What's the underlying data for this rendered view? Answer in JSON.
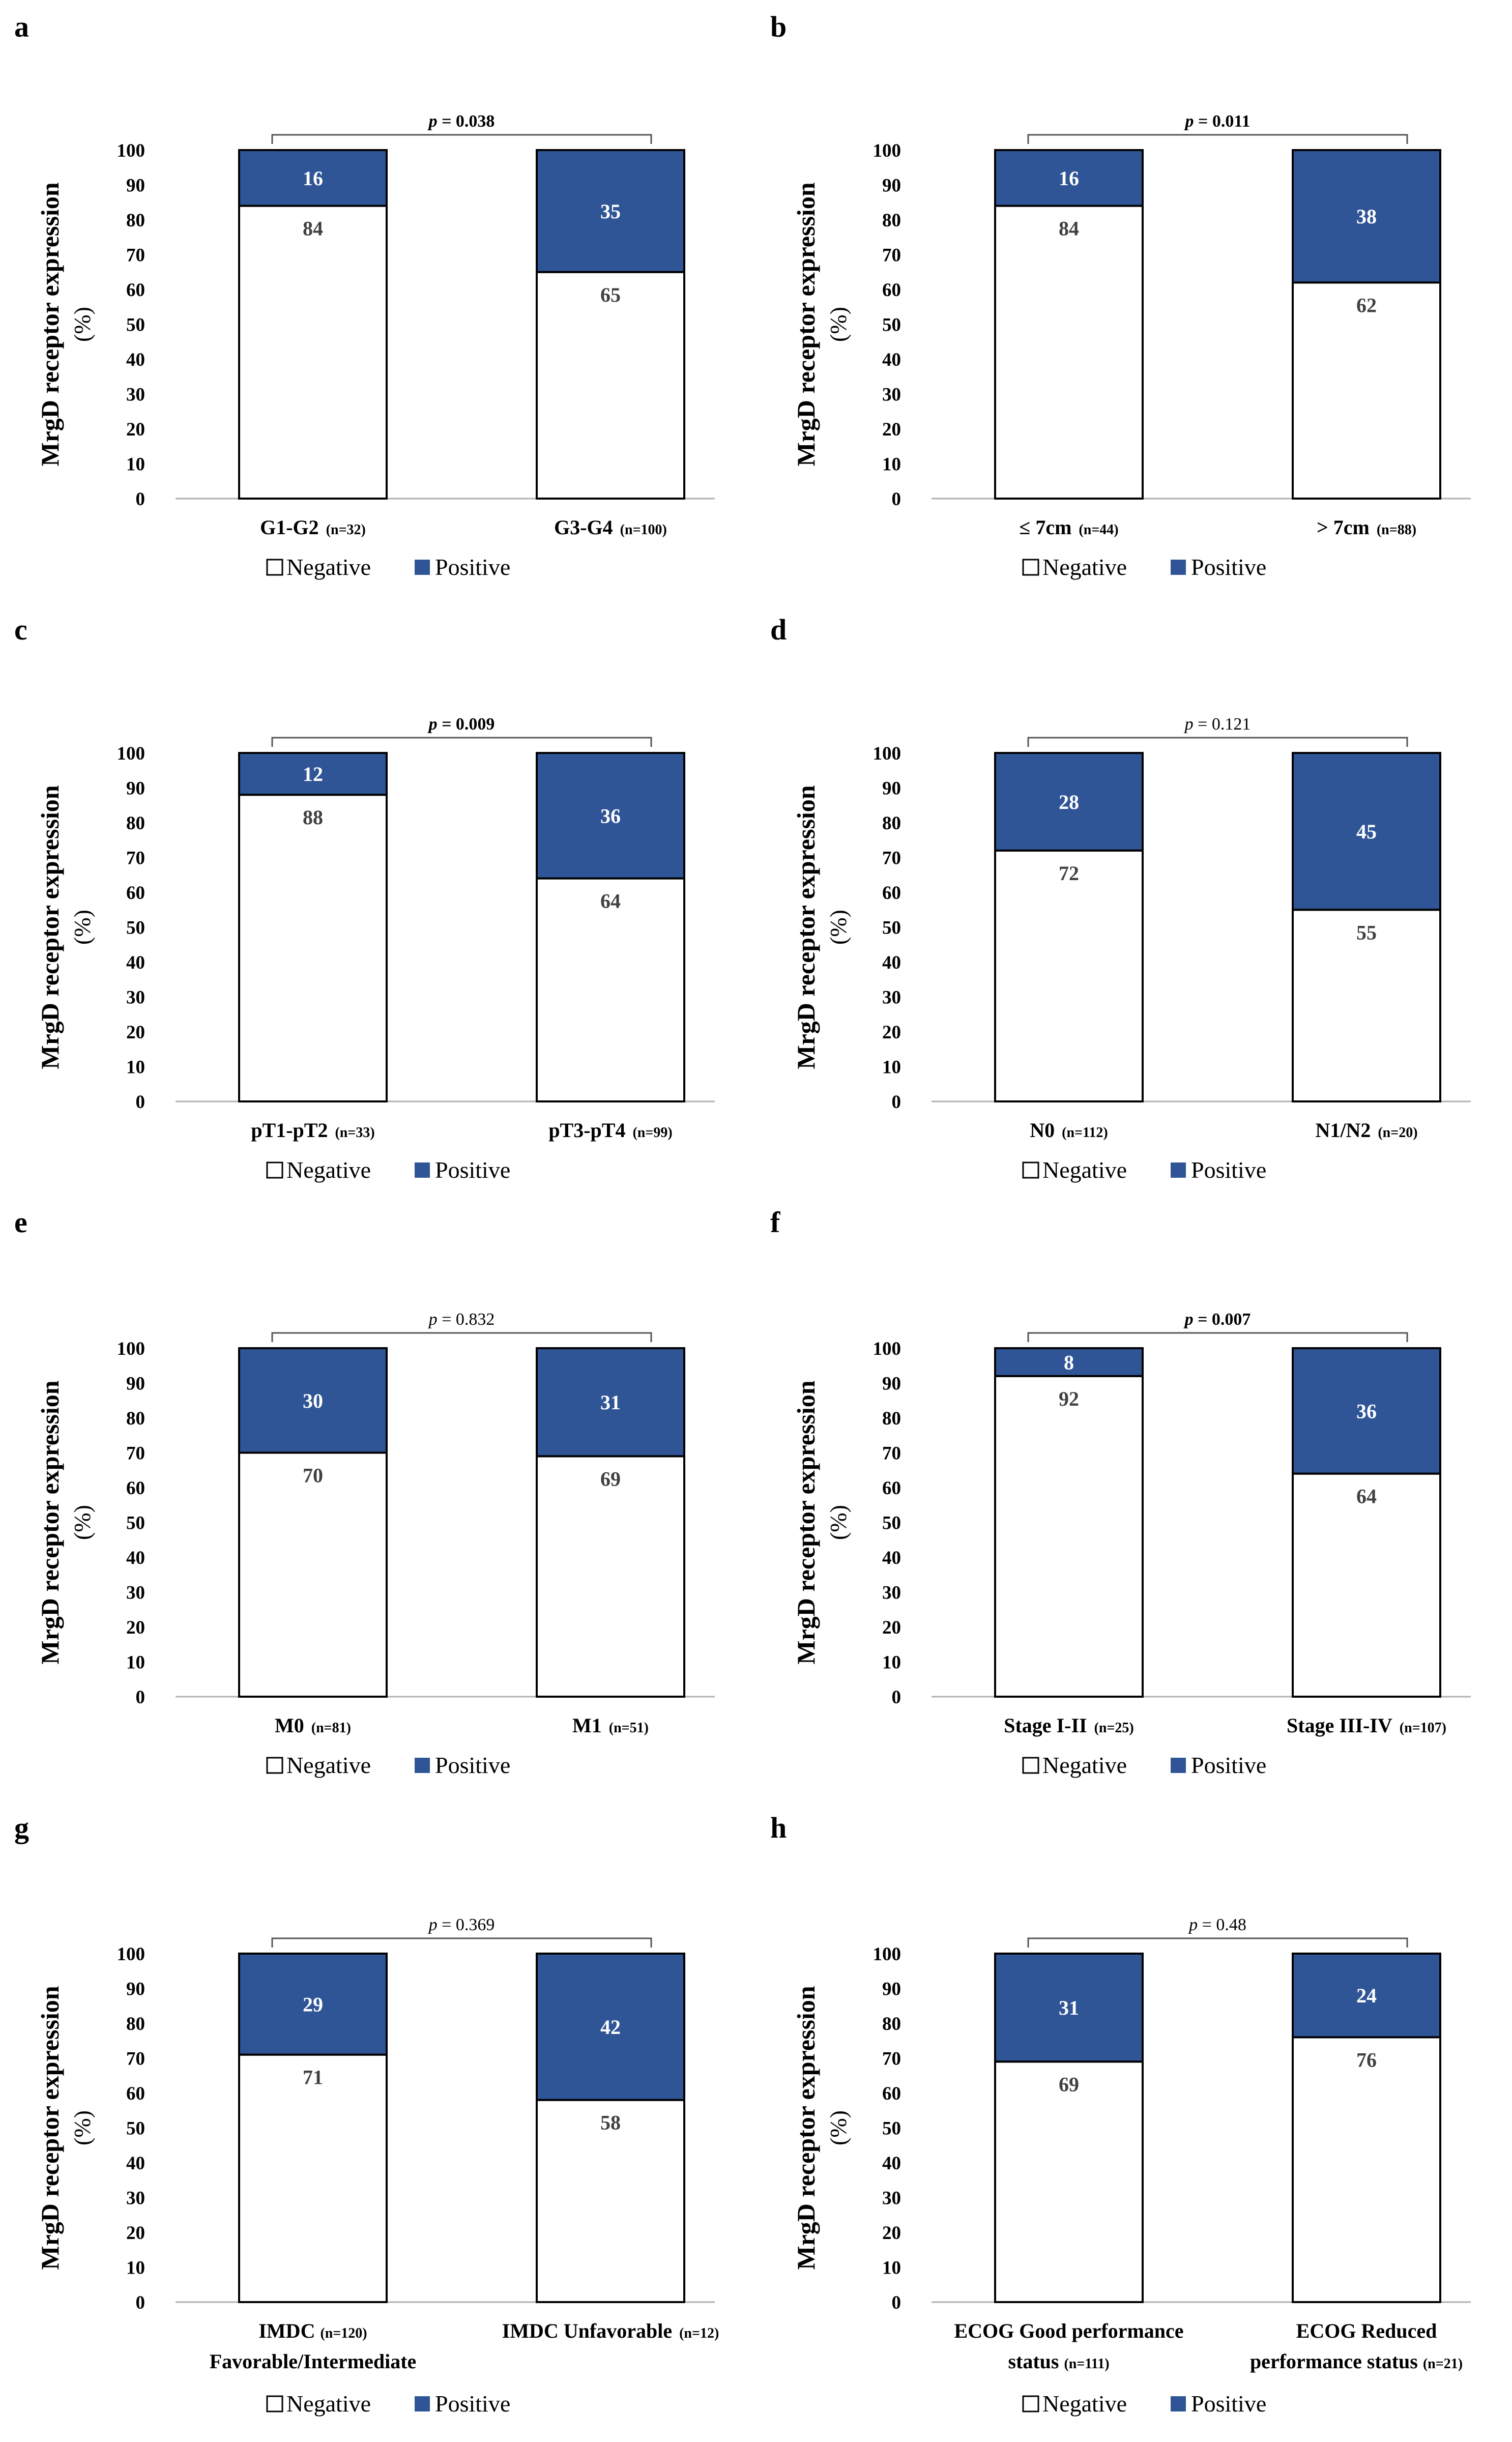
{
  "figure": {
    "legend_labels": [
      "Negative",
      "Positive"
    ],
    "colors": {
      "negative": "#ffffff",
      "positive": "#2f5597",
      "stroke": "#000000",
      "axis": "#b0b0b0",
      "bracket": "#555555"
    }
  },
  "chart_data": [
    {
      "panel": "a",
      "type": "bar",
      "stacked": true,
      "ylabel": "MrgD receptor expression (%)",
      "ylim": [
        0,
        100
      ],
      "yticks": [
        0,
        10,
        20,
        30,
        40,
        50,
        60,
        70,
        80,
        90,
        100
      ],
      "categories": [
        {
          "label": "G1-G2",
          "n": "(n=32)"
        },
        {
          "label": "G3-G4",
          "n": "(n=100)"
        }
      ],
      "series": [
        {
          "name": "Negative",
          "values": [
            84,
            65
          ]
        },
        {
          "name": "Positive",
          "values": [
            16,
            35
          ]
        }
      ],
      "p_value": "0.038",
      "p_bold": true,
      "legend": "bottom-center"
    },
    {
      "panel": "b",
      "type": "bar",
      "stacked": true,
      "ylabel": "MrgD receptor expression (%)",
      "ylim": [
        0,
        100
      ],
      "yticks": [
        0,
        10,
        20,
        30,
        40,
        50,
        60,
        70,
        80,
        90,
        100
      ],
      "categories": [
        {
          "label": "≤ 7cm",
          "n": "(n=44)"
        },
        {
          "label": "> 7cm",
          "n": "(n=88)"
        }
      ],
      "series": [
        {
          "name": "Negative",
          "values": [
            84,
            62
          ]
        },
        {
          "name": "Positive",
          "values": [
            16,
            38
          ]
        }
      ],
      "p_value": "0.011",
      "p_bold": true,
      "legend": "bottom-center"
    },
    {
      "panel": "c",
      "type": "bar",
      "stacked": true,
      "ylabel": "MrgD receptor expression (%)",
      "ylim": [
        0,
        100
      ],
      "yticks": [
        0,
        10,
        20,
        30,
        40,
        50,
        60,
        70,
        80,
        90,
        100
      ],
      "categories": [
        {
          "label": "pT1-pT2",
          "n": "(n=33)"
        },
        {
          "label": "pT3-pT4",
          "n": "(n=99)"
        }
      ],
      "series": [
        {
          "name": "Negative",
          "values": [
            88,
            64
          ]
        },
        {
          "name": "Positive",
          "values": [
            12,
            36
          ]
        }
      ],
      "p_value": "0.009",
      "p_bold": true,
      "legend": "bottom-center"
    },
    {
      "panel": "d",
      "type": "bar",
      "stacked": true,
      "ylabel": "MrgD receptor expression (%)",
      "ylim": [
        0,
        100
      ],
      "yticks": [
        0,
        10,
        20,
        30,
        40,
        50,
        60,
        70,
        80,
        90,
        100
      ],
      "categories": [
        {
          "label": "N0",
          "n": "(n=112)"
        },
        {
          "label": "N1/N2",
          "n": "(n=20)"
        }
      ],
      "series": [
        {
          "name": "Negative",
          "values": [
            72,
            55
          ]
        },
        {
          "name": "Positive",
          "values": [
            28,
            45
          ]
        }
      ],
      "p_value": "0.121",
      "p_bold": false,
      "legend": "bottom-center"
    },
    {
      "panel": "e",
      "type": "bar",
      "stacked": true,
      "ylabel": "MrgD receptor expression (%)",
      "ylim": [
        0,
        100
      ],
      "yticks": [
        0,
        10,
        20,
        30,
        40,
        50,
        60,
        70,
        80,
        90,
        100
      ],
      "categories": [
        {
          "label": "M0",
          "n": "(n=81)"
        },
        {
          "label": "M1",
          "n": "(n=51)"
        }
      ],
      "series": [
        {
          "name": "Negative",
          "values": [
            70,
            69
          ]
        },
        {
          "name": "Positive",
          "values": [
            30,
            31
          ]
        }
      ],
      "p_value": "0.832",
      "p_bold": false,
      "legend": "bottom-center"
    },
    {
      "panel": "f",
      "type": "bar",
      "stacked": true,
      "ylabel": "MrgD receptor expression (%)",
      "ylim": [
        0,
        100
      ],
      "yticks": [
        0,
        10,
        20,
        30,
        40,
        50,
        60,
        70,
        80,
        90,
        100
      ],
      "categories": [
        {
          "label": "Stage I-II",
          "n": "(n=25)"
        },
        {
          "label": "Stage III-IV",
          "n": "(n=107)"
        }
      ],
      "series": [
        {
          "name": "Negative",
          "values": [
            92,
            64
          ]
        },
        {
          "name": "Positive",
          "values": [
            8,
            36
          ]
        }
      ],
      "p_value": "0.007",
      "p_bold": true,
      "legend": "bottom-center"
    },
    {
      "panel": "g",
      "type": "bar",
      "stacked": true,
      "ylabel": "MrgD receptor expression (%)",
      "ylim": [
        0,
        100
      ],
      "yticks": [
        0,
        10,
        20,
        30,
        40,
        50,
        60,
        70,
        80,
        90,
        100
      ],
      "categories": [
        {
          "label": "IMDC",
          "label2": "Favorable/Intermediate",
          "n": "(n=120)"
        },
        {
          "label": "IMDC Unfavorable",
          "n": "(n=12)"
        }
      ],
      "series": [
        {
          "name": "Negative",
          "values": [
            71,
            58
          ]
        },
        {
          "name": "Positive",
          "values": [
            29,
            42
          ]
        }
      ],
      "p_value": "0.369",
      "p_bold": false,
      "legend": "bottom-center"
    },
    {
      "panel": "h",
      "type": "bar",
      "stacked": true,
      "ylabel": "MrgD receptor expression (%)",
      "ylim": [
        0,
        100
      ],
      "yticks": [
        0,
        10,
        20,
        30,
        40,
        50,
        60,
        70,
        80,
        90,
        100
      ],
      "categories": [
        {
          "label": "ECOG Good performance",
          "label2": "status",
          "n": "(n=111)"
        },
        {
          "label": "ECOG Reduced",
          "label2": "performance status",
          "n": "(n=21)"
        }
      ],
      "series": [
        {
          "name": "Negative",
          "values": [
            69,
            76
          ]
        },
        {
          "name": "Positive",
          "values": [
            31,
            24
          ]
        }
      ],
      "p_value": "0.48",
      "p_bold": false,
      "legend": "bottom-center"
    }
  ]
}
